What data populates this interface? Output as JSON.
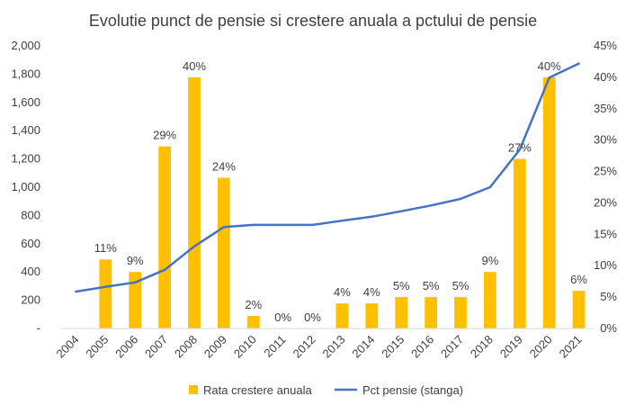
{
  "chart_data": {
    "type": "bar",
    "title": "Evolutie punct de pensie si crestere anuala a pctului de pensie",
    "categories": [
      "2004",
      "2005",
      "2006",
      "2007",
      "2008",
      "2009",
      "2010",
      "2011",
      "2012",
      "2013",
      "2014",
      "2015",
      "2016",
      "2017",
      "2018",
      "2019",
      "2020",
      "2021"
    ],
    "series": [
      {
        "name": "Rata crestere anuala",
        "type": "bar",
        "axis": "right",
        "color": "#FFC000",
        "values": [
          null,
          11,
          9,
          29,
          40,
          24,
          2,
          0,
          0,
          4,
          4,
          5,
          5,
          5,
          9,
          27,
          40,
          6
        ],
        "data_labels": [
          "",
          "11%",
          "9%",
          "29%",
          "40%",
          "24%",
          "2%",
          "0%",
          "0%",
          "4%",
          "4%",
          "5%",
          "5%",
          "5%",
          "9%",
          "27%",
          "40%",
          "6%"
        ]
      },
      {
        "name": "Pct pensie (stanga)",
        "type": "line",
        "axis": "left",
        "color": "#4472C4",
        "values": [
          261,
          295,
          326,
          415,
          581,
          718,
          733,
          733,
          733,
          763,
          791,
          830,
          871,
          917,
          1000,
          1265,
          1775,
          1875
        ]
      }
    ],
    "y_left": {
      "ylim": [
        0,
        2000
      ],
      "ticks": [
        0,
        200,
        400,
        600,
        800,
        1000,
        1200,
        1400,
        1600,
        1800,
        2000
      ],
      "tick_labels": [
        "-",
        "200",
        "400",
        "600",
        "800",
        "1,000",
        "1,200",
        "1,400",
        "1,600",
        "1,800",
        "2,000"
      ]
    },
    "y_right": {
      "ylim": [
        0,
        45
      ],
      "ticks": [
        0,
        5,
        10,
        15,
        20,
        25,
        30,
        35,
        40,
        45
      ],
      "tick_labels": [
        "0%",
        "5%",
        "10%",
        "15%",
        "20%",
        "25%",
        "30%",
        "35%",
        "40%",
        "45%"
      ]
    },
    "grid": false,
    "legend": {
      "position": "bottom",
      "entries": [
        "Rata crestere anuala",
        "Pct pensie (stanga)"
      ]
    }
  }
}
